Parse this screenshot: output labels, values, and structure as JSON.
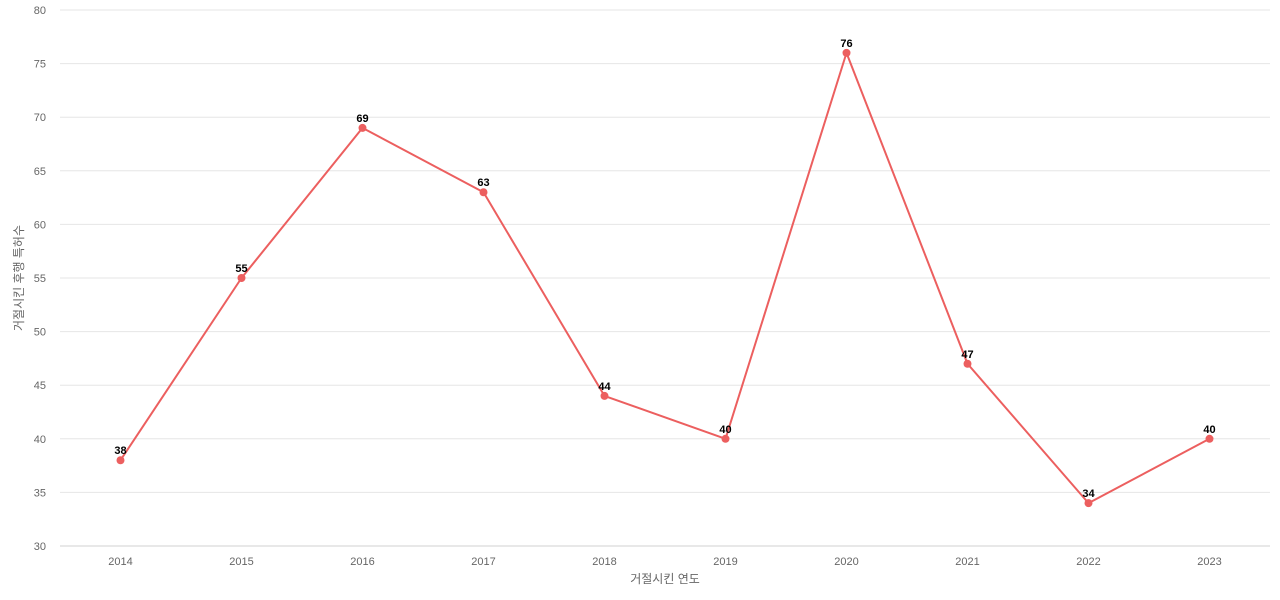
{
  "chart_data": {
    "type": "line",
    "xlabel": "거절시킨 연도",
    "ylabel": "거절시킨 후행 특허수",
    "ylim": [
      30,
      80
    ],
    "yticks": [
      30,
      35,
      40,
      45,
      50,
      55,
      60,
      65,
      70,
      75,
      80
    ],
    "categories": [
      "2014",
      "2015",
      "2016",
      "2017",
      "2018",
      "2019",
      "2020",
      "2021",
      "2022",
      "2023"
    ],
    "series": [
      {
        "values": [
          38,
          55,
          69,
          63,
          44,
          40,
          76,
          47,
          34,
          40
        ],
        "color": "#ec5f5f"
      }
    ],
    "grid": true,
    "data_labels": true
  }
}
